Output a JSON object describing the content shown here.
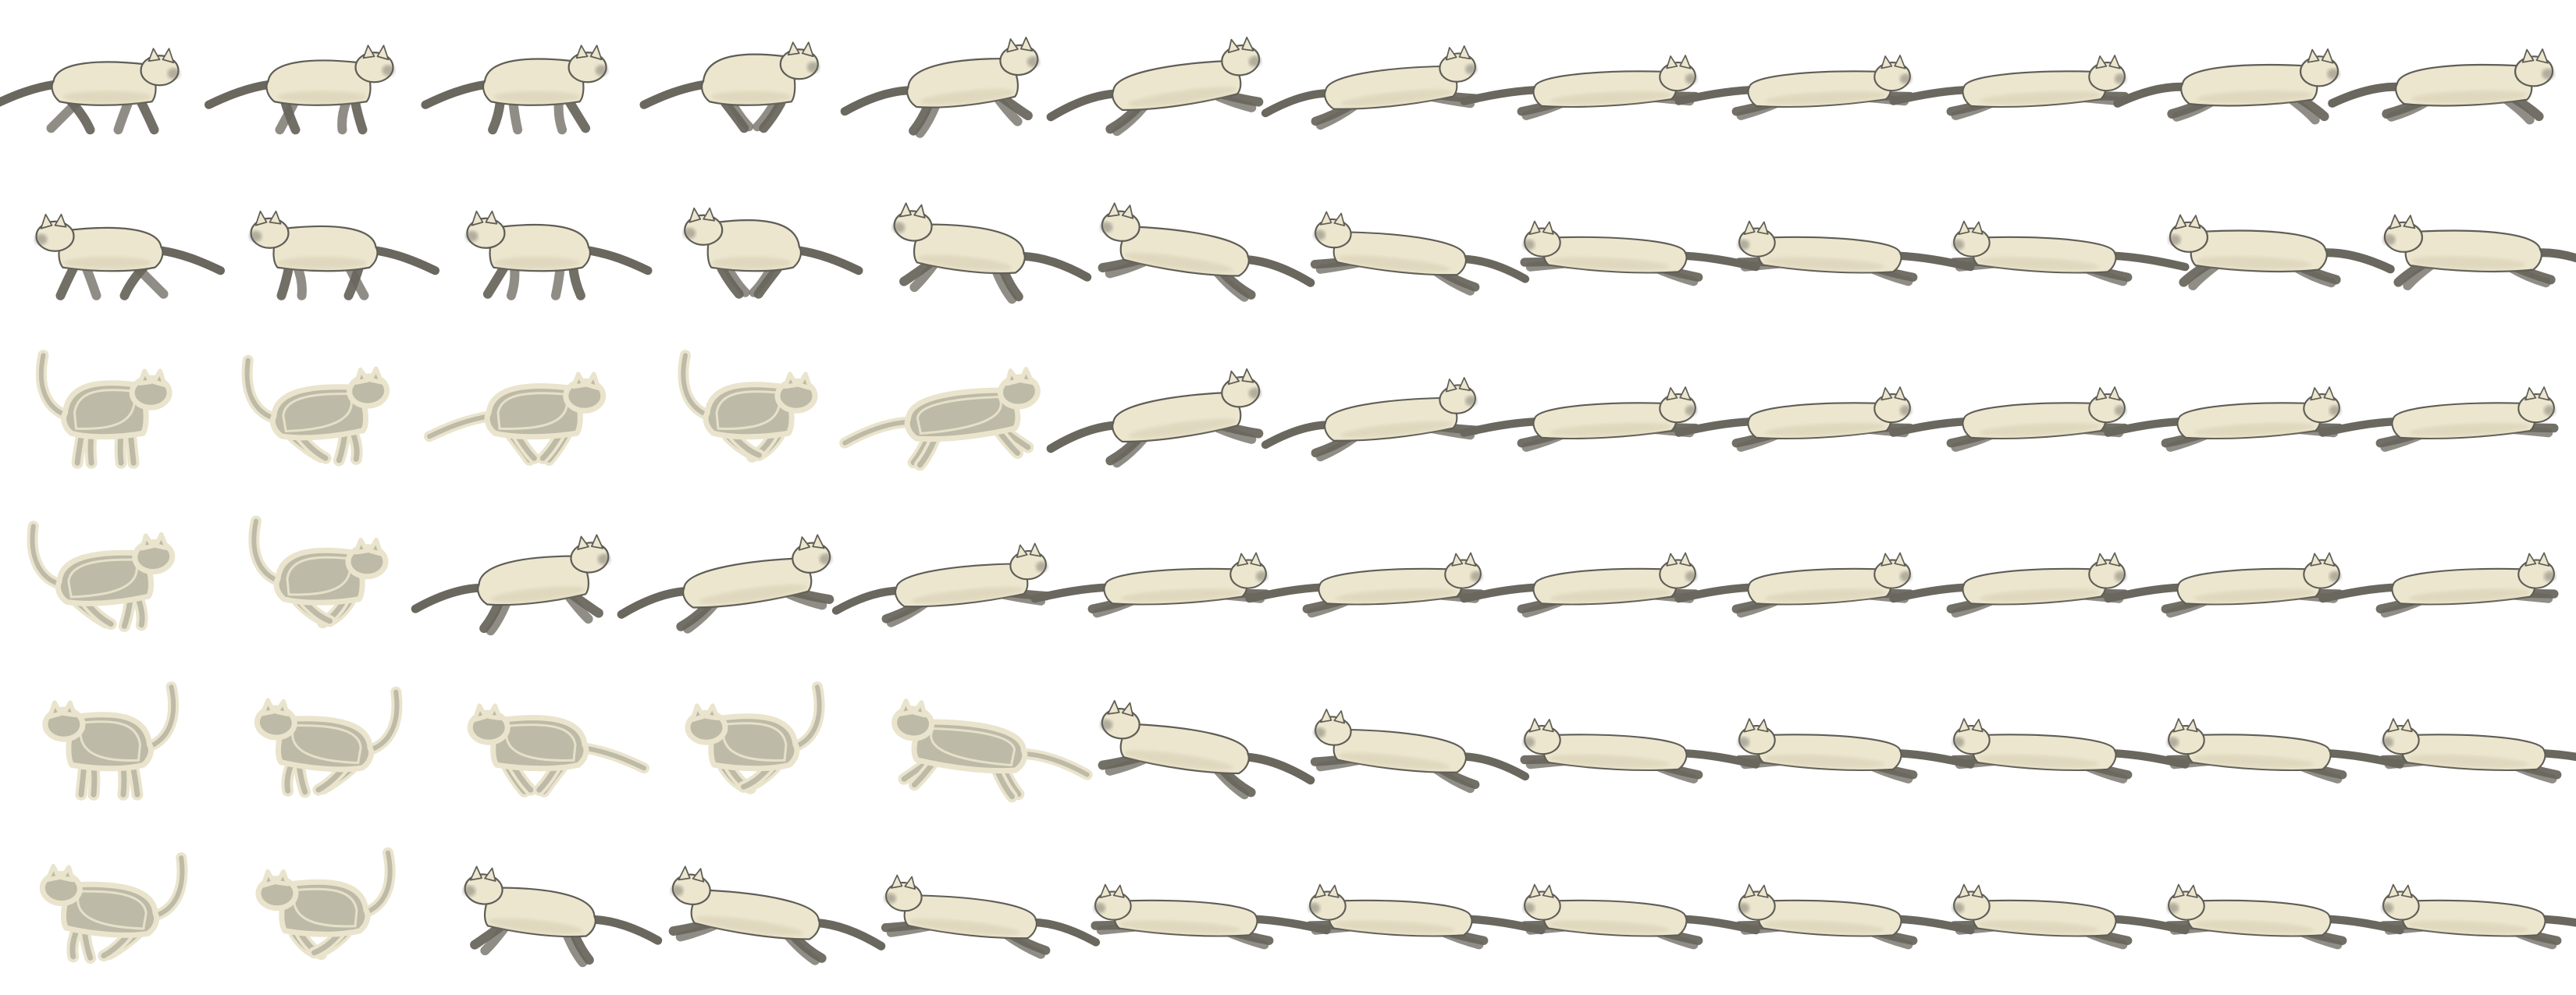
{
  "sprite_sheet": {
    "subject": "cat run cycle",
    "columns": 12,
    "rows": 6,
    "colors": {
      "background": "#ffffff",
      "fur": "#ece6cf",
      "fur_shadow": "#d8d0b4",
      "outline": "#5f5d55",
      "dark_point": "#6a675e",
      "xray_fill": "#bdbaa7",
      "xray_outline": "#eae4cd"
    },
    "rows_data": [
      {
        "facing": "right",
        "style": "solid",
        "poses": [
          "walk-1",
          "walk-2",
          "walk-3",
          "gather",
          "reach",
          "stretch",
          "leap",
          "flight",
          "flight",
          "flight",
          "land",
          "land"
        ]
      },
      {
        "facing": "left",
        "style": "solid",
        "poses": [
          "walk-1",
          "walk-2",
          "walk-3",
          "gather",
          "reach",
          "stretch",
          "leap",
          "flight",
          "flight",
          "flight",
          "land",
          "land"
        ]
      },
      {
        "facing": "right",
        "style": "mixed",
        "xray_count": 5,
        "poses": [
          "crouch-tail-up",
          "spring",
          "gather",
          "tuck",
          "reach",
          "stretch",
          "leap",
          "flight",
          "flight",
          "flight",
          "flight",
          "flight"
        ]
      },
      {
        "facing": "right",
        "style": "mixed",
        "xray_count": 2,
        "poses": [
          "spring",
          "tuck",
          "reach",
          "stretch",
          "leap",
          "flight",
          "flight",
          "flight",
          "flight",
          "flight",
          "flight",
          "flight"
        ]
      },
      {
        "facing": "left",
        "style": "mixed",
        "xray_count": 5,
        "poses": [
          "crouch-tail-up",
          "spring",
          "gather",
          "tuck",
          "reach",
          "stretch",
          "leap",
          "flight",
          "flight",
          "flight",
          "flight",
          "flight"
        ]
      },
      {
        "facing": "left",
        "style": "mixed",
        "xray_count": 2,
        "poses": [
          "spring",
          "tuck",
          "reach",
          "stretch",
          "leap",
          "flight",
          "flight",
          "flight",
          "flight",
          "flight",
          "flight",
          "flight"
        ]
      }
    ]
  }
}
